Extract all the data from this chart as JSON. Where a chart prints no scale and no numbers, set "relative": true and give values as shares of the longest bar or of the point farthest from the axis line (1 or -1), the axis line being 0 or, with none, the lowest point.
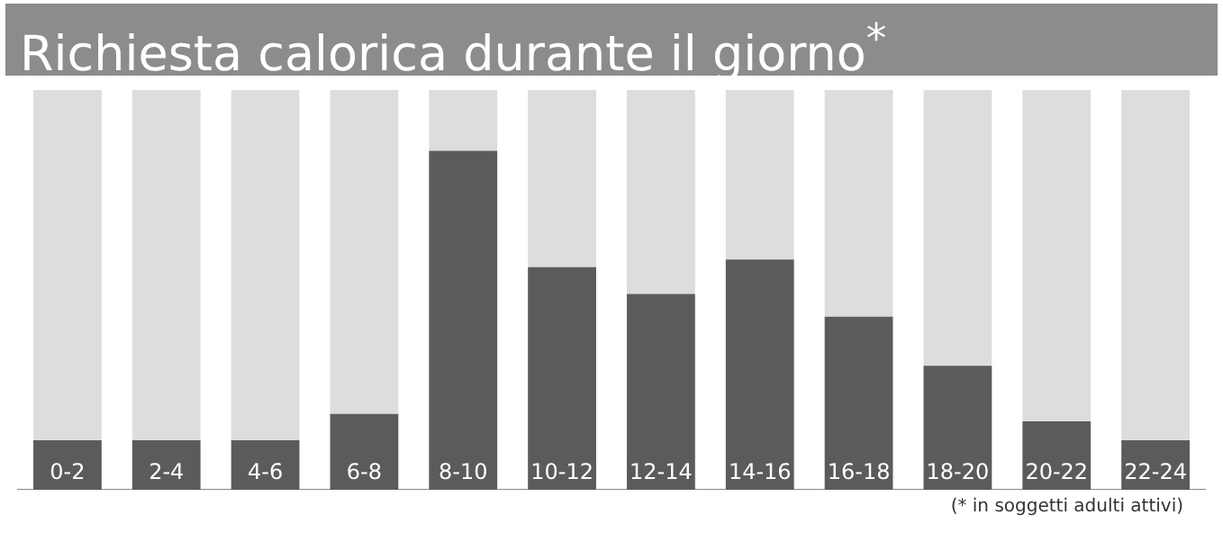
{
  "chart_data": {
    "type": "bar",
    "title": "Richiesta calorica durante il giorno$^{*}$",
    "categories": [
      "0-2",
      "2-4",
      "4-6",
      "6-8",
      "8-10",
      "10-12",
      "12-14",
      "14-16",
      "16-18",
      "18-20",
      "20-22",
      "22-24"
    ],
    "relative": true,
    "stacked": true,
    "series": [
      {
        "color": "#5b5b5b",
        "values": [
          0.124,
          0.124,
          0.124,
          0.19,
          0.848,
          0.557,
          0.49,
          0.576,
          0.433,
          0.31,
          0.171,
          0.124
        ]
      },
      {
        "color": "#dddddd",
        "values": [
          0.876,
          0.876,
          0.876,
          0.81,
          0.152,
          0.443,
          0.51,
          0.424,
          0.567,
          0.69,
          0.829,
          0.876
        ]
      }
    ],
    "annotations": [
      "(* in soggetti adulti attivi)"
    ],
    "legend": false
  }
}
